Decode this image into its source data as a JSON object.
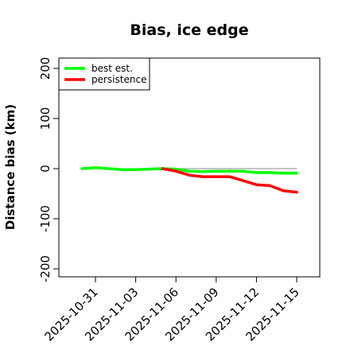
{
  "chart_data": {
    "type": "line",
    "title": "Bias, ice edge",
    "xlabel": "",
    "ylabel": "Distance bias (km)",
    "x_range": [
      "2025-10-29",
      "2025-11-17"
    ],
    "ylim": [
      -215,
      215
    ],
    "yticks": [
      -200,
      -100,
      0,
      100,
      200
    ],
    "yticklabels": [
      "-200",
      "-100",
      "0",
      "100",
      "200"
    ],
    "xticks": [
      "2025-10-31",
      "2025-11-03",
      "2025-11-06",
      "2025-11-09",
      "2025-11-12",
      "2025-11-15"
    ],
    "xticklabels": [
      "2025-10-31",
      "2025-11-03",
      "2025-11-06",
      "2025-11-09",
      "2025-11-12",
      "2025-11-15"
    ],
    "reference_line": 0,
    "legend_position": "top-left",
    "series": [
      {
        "name": "best est.",
        "color": "#00ff00",
        "x": [
          "2025-10-30",
          "2025-10-31",
          "2025-11-01",
          "2025-11-02",
          "2025-11-03",
          "2025-11-04",
          "2025-11-05",
          "2025-11-06",
          "2025-11-07",
          "2025-11-08",
          "2025-11-09",
          "2025-11-10",
          "2025-11-11",
          "2025-11-12",
          "2025-11-13",
          "2025-11-14",
          "2025-11-15"
        ],
        "values": [
          0,
          2,
          0,
          -2,
          -2,
          -1,
          0,
          -1,
          -5,
          -6,
          -5,
          -5,
          -5,
          -8,
          -8,
          -9,
          -9
        ]
      },
      {
        "name": "persistence",
        "color": "#ff0000",
        "x": [
          "2025-11-05",
          "2025-11-06",
          "2025-11-07",
          "2025-11-08",
          "2025-11-09",
          "2025-11-10",
          "2025-11-11",
          "2025-11-12",
          "2025-11-13",
          "2025-11-14",
          "2025-11-15"
        ],
        "values": [
          0,
          -5,
          -13,
          -16,
          -16,
          -16,
          -24,
          -32,
          -34,
          -44,
          -47
        ]
      }
    ]
  }
}
